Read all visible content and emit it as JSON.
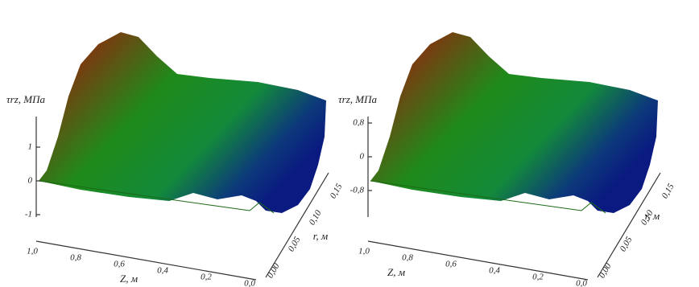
{
  "panels": [
    {
      "z_label": "τrz, МПа",
      "z_ticks": [
        "1",
        "0",
        "-1"
      ],
      "x_label": "Z, м",
      "x_ticks": [
        "1,0",
        "0,8",
        "0,6",
        "0,4",
        "0,2",
        "0,0"
      ],
      "y_label": "r, м",
      "y_ticks": [
        "0,15",
        "0,10",
        "0,05",
        "0,00"
      ]
    },
    {
      "z_label": "τrz, МПа",
      "z_ticks": [
        "0,8",
        "0",
        "-0,8"
      ],
      "x_label": "Z, м",
      "x_ticks": [
        "1,0",
        "0,8",
        "0,6",
        "0,4",
        "0,2",
        "0,0"
      ],
      "y_label": "r, м",
      "y_ticks": [
        "0,15",
        "0,10",
        "0,05",
        "0,00"
      ]
    }
  ]
}
